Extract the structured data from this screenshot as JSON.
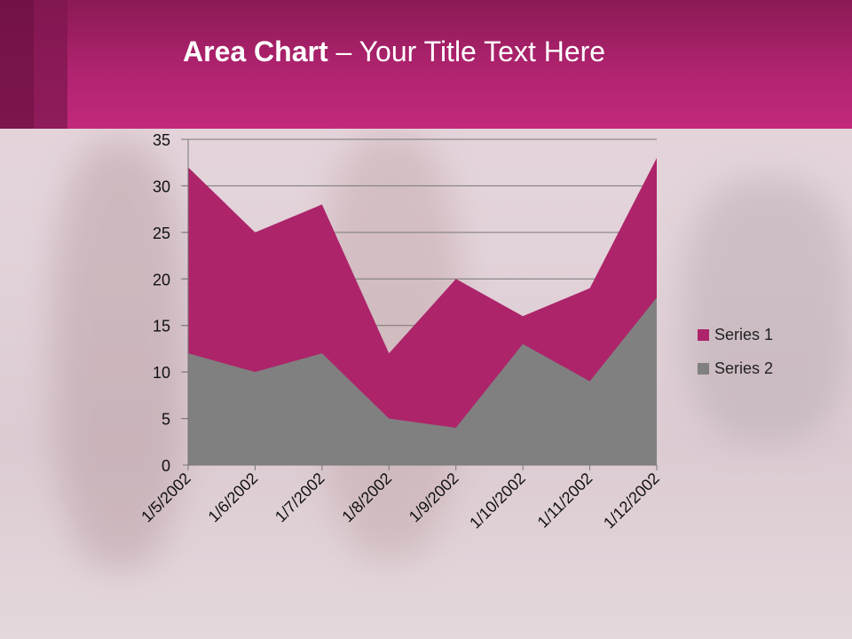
{
  "slide": {
    "title_bold": "Area Chart",
    "title_rest": " – Your Title Text Here"
  },
  "colors": {
    "header": "#b0236f",
    "series1": "#ad246a",
    "series2": "#808080"
  },
  "chart_data": {
    "type": "area",
    "title": "Area Chart – Your Title Text Here",
    "categories": [
      "1/5/2002",
      "1/6/2002",
      "1/7/2002",
      "1/8/2002",
      "1/9/2002",
      "1/10/2002",
      "1/11/2002",
      "1/12/2002"
    ],
    "series": [
      {
        "name": "Series 1",
        "values": [
          32,
          25,
          28,
          12,
          20,
          16,
          19,
          33
        ],
        "color": "#ad246a"
      },
      {
        "name": "Series 2",
        "values": [
          12,
          10,
          12,
          5,
          4,
          13,
          9,
          18
        ],
        "color": "#808080"
      }
    ],
    "ylim": [
      0,
      35
    ],
    "yticks": [
      0,
      5,
      10,
      15,
      20,
      25,
      30,
      35
    ],
    "grid": true,
    "stacked": false,
    "legend": "right"
  }
}
